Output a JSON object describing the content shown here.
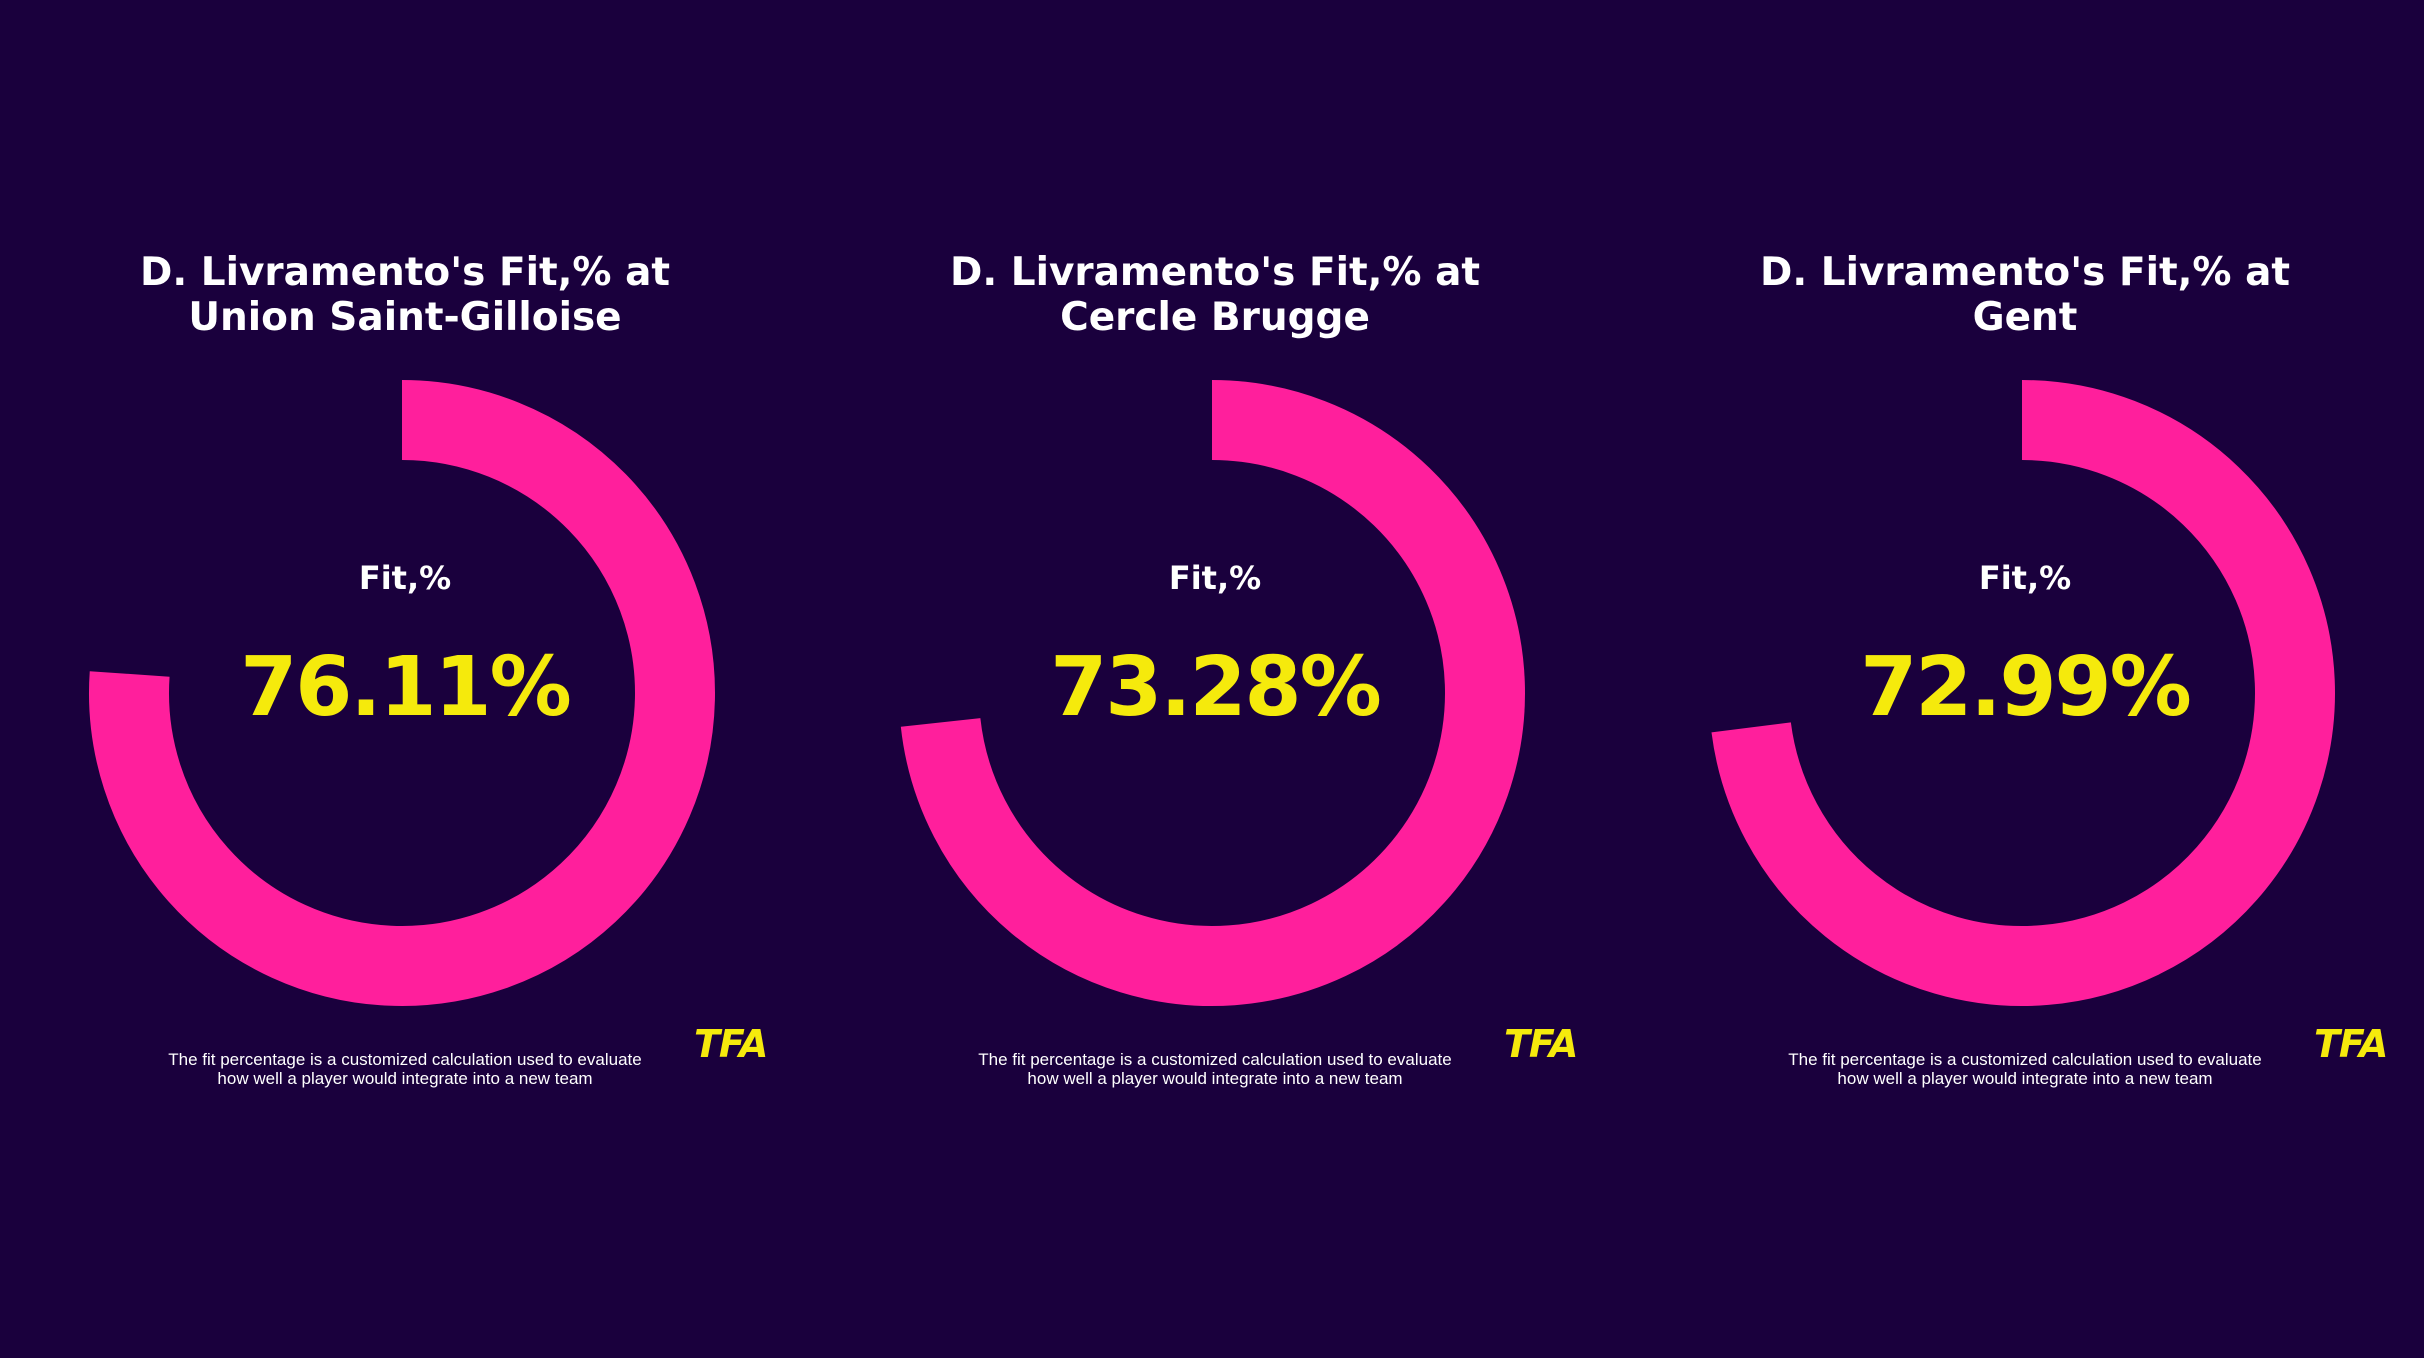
{
  "colors": {
    "background": "#1a003d",
    "ring": "#ff1f9c",
    "value": "#f5ea0c",
    "text": "#ffffff",
    "logo": "#f5ea0c"
  },
  "panels": [
    {
      "title_line1": "D. Livramento's Fit,% at",
      "title_line2": "Union Saint-Gilloise",
      "center_label": "Fit,%",
      "value_label": "76.11%",
      "footnote_line1": "The fit percentage is a customized calculation used to evaluate",
      "footnote_line2": "how well a player would integrate into a new team",
      "logo": "TFA"
    },
    {
      "title_line1": "D. Livramento's Fit,% at",
      "title_line2": "Cercle Brugge",
      "center_label": "Fit,%",
      "value_label": "73.28%",
      "footnote_line1": "The fit percentage is a customized calculation used to evaluate",
      "footnote_line2": "how well a player would integrate into a new team",
      "logo": "TFA"
    },
    {
      "title_line1": "D. Livramento's Fit,% at",
      "title_line2": "Gent",
      "center_label": "Fit,%",
      "value_label": "72.99%",
      "footnote_line1": "The fit percentage is a customized calculation used to evaluate",
      "footnote_line2": "how well a player would integrate into a new team",
      "logo": "TFA"
    }
  ],
  "chart_data": [
    {
      "type": "pie",
      "title": "D. Livramento's Fit,% at Union Saint-Gilloise",
      "categories": [
        "Fit,%"
      ],
      "values": [
        76.11
      ],
      "ylim": [
        0,
        100
      ]
    },
    {
      "type": "pie",
      "title": "D. Livramento's Fit,% at Cercle Brugge",
      "categories": [
        "Fit,%"
      ],
      "values": [
        73.28
      ],
      "ylim": [
        0,
        100
      ]
    },
    {
      "type": "pie",
      "title": "D. Livramento's Fit,% at Gent",
      "categories": [
        "Fit,%"
      ],
      "values": [
        72.99
      ],
      "ylim": [
        0,
        100
      ]
    }
  ]
}
